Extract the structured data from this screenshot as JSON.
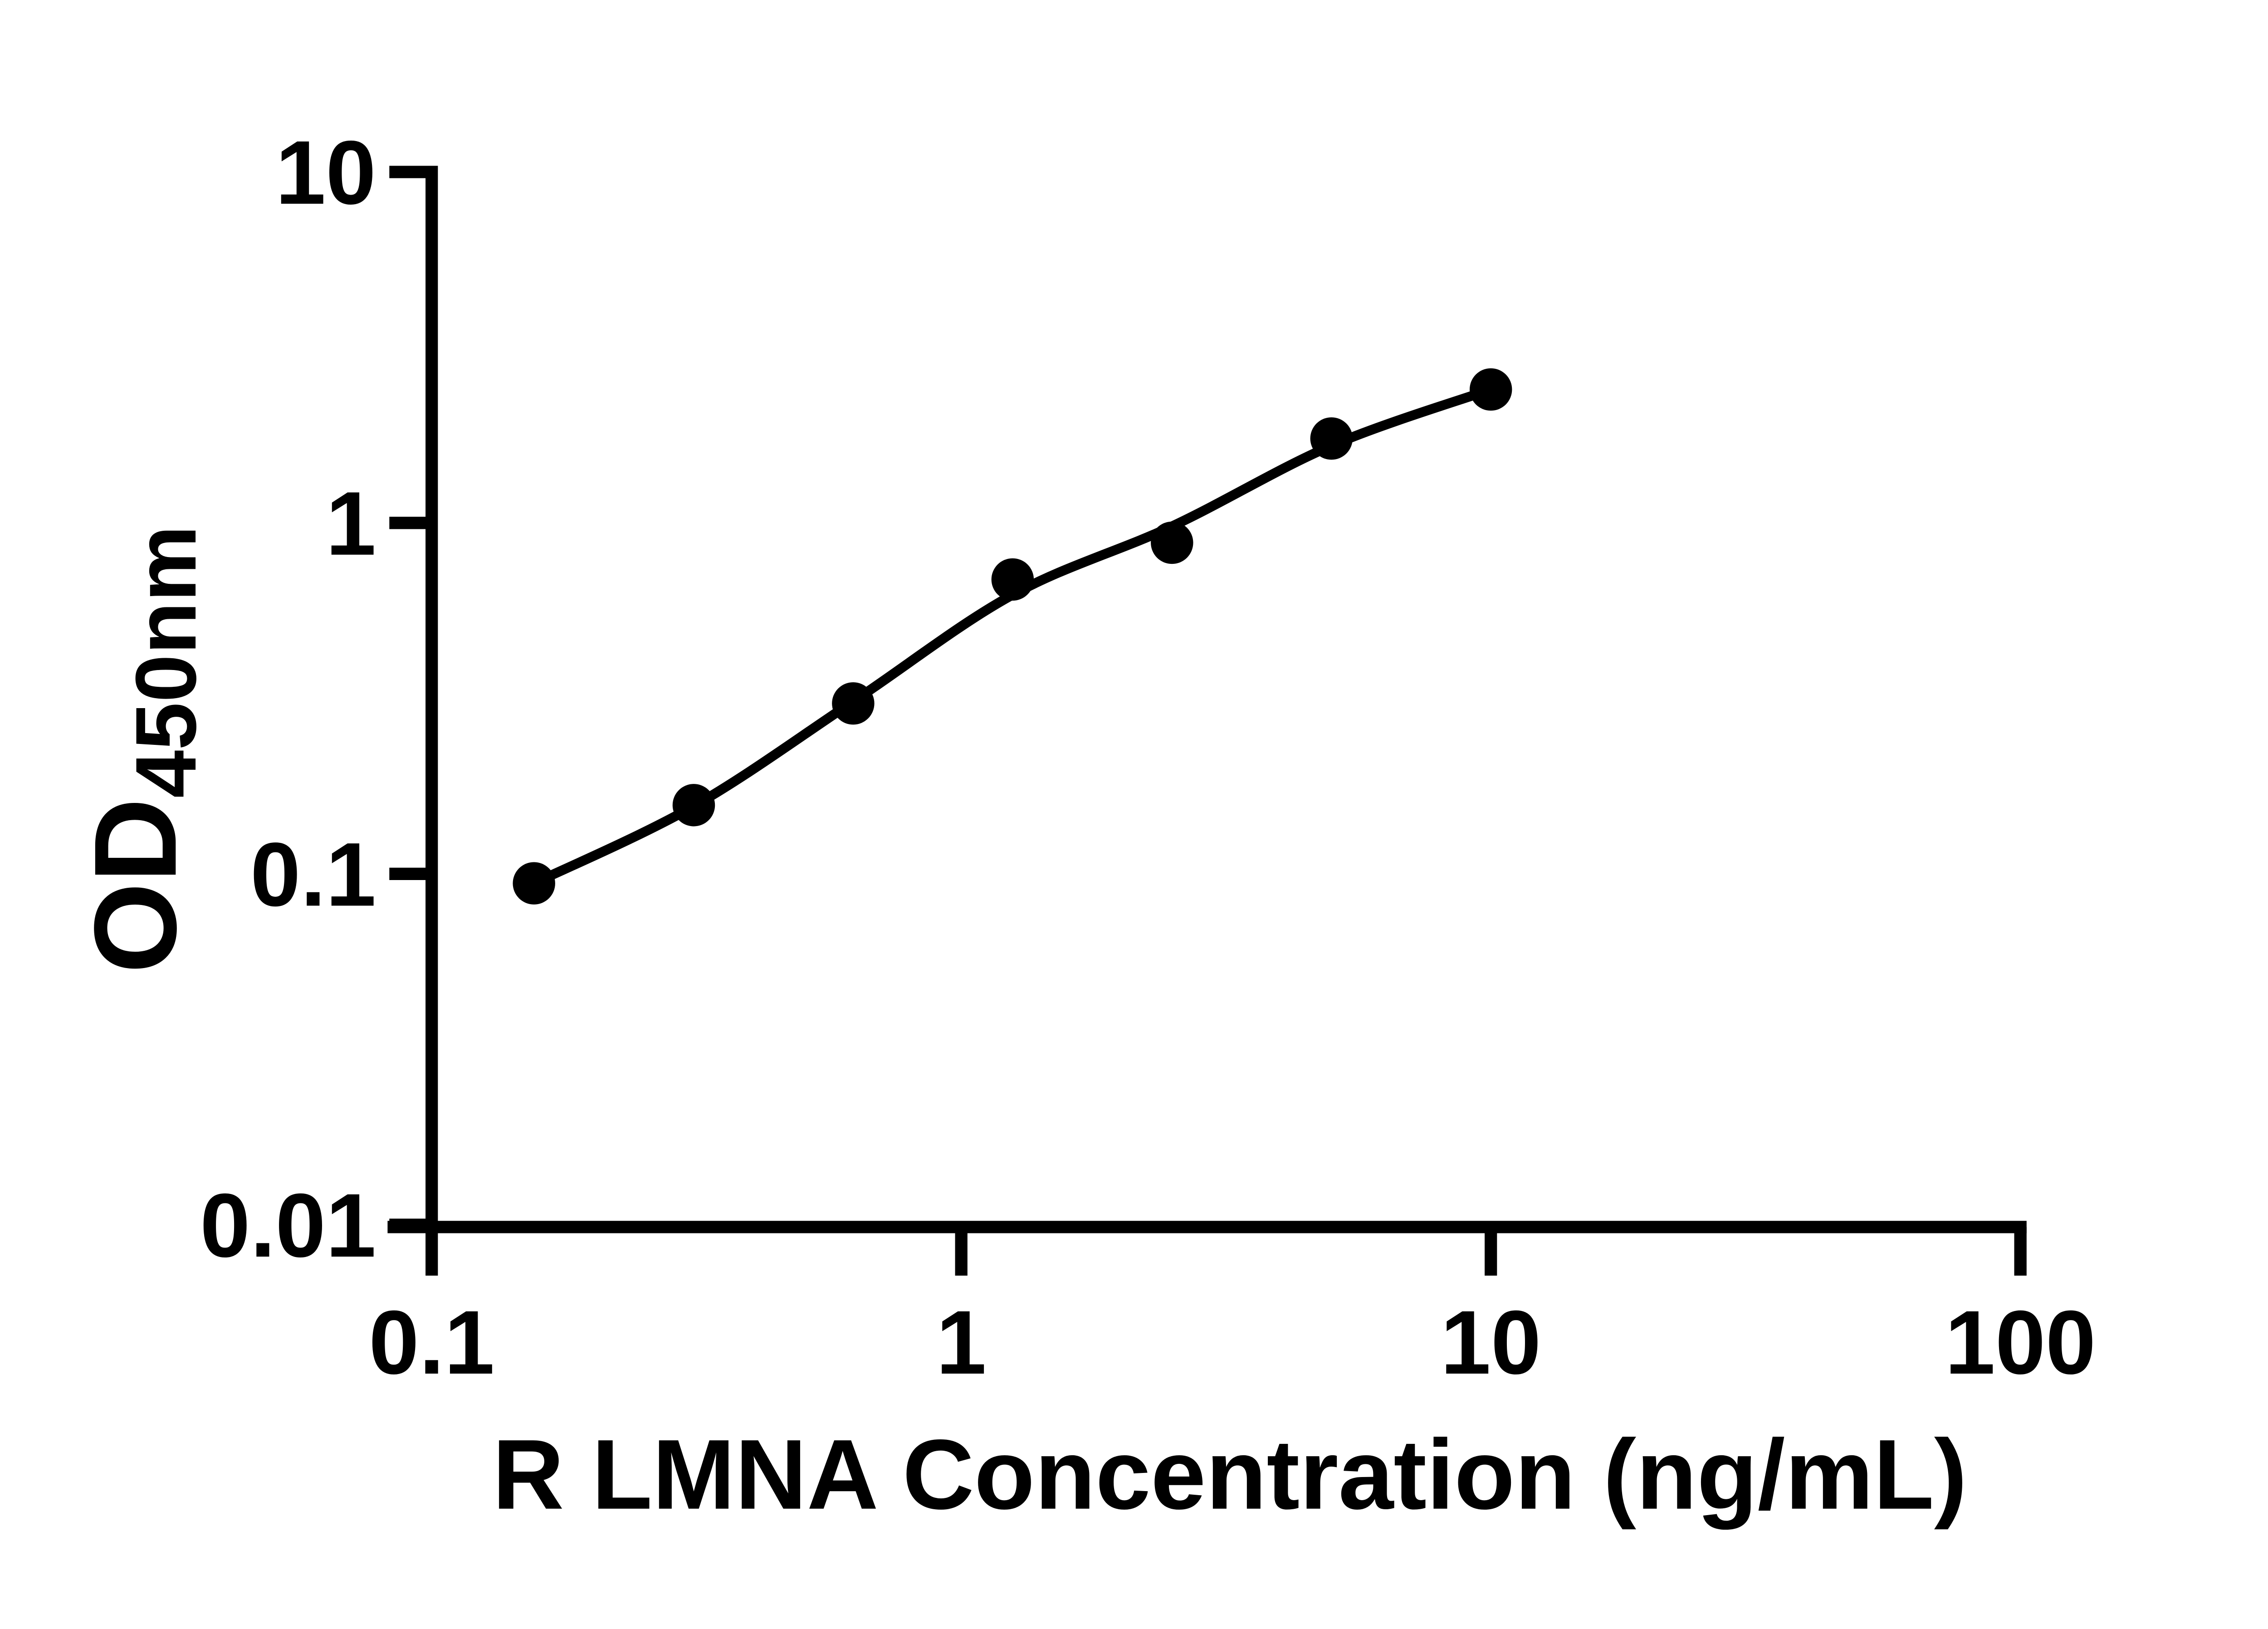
{
  "colors": {
    "ink": "#000000",
    "background": "#ffffff"
  },
  "chart_data": {
    "type": "scatter",
    "title": "",
    "xlabel": "R LMNA Concentration (ng/mL)",
    "ylabel": "OD450nm",
    "ylabel_main": "OD",
    "ylabel_sub": "450nm",
    "x_scale": "log10",
    "y_scale": "log10",
    "xlim": [
      0.1,
      100
    ],
    "ylim": [
      0.01,
      10
    ],
    "x_tick_labels": [
      "0.1",
      "1",
      "10",
      "100"
    ],
    "x_tick_values": [
      0.1,
      1,
      10,
      100
    ],
    "y_tick_labels": [
      "10",
      "1",
      "0.1",
      "0.01"
    ],
    "y_tick_values": [
      10,
      1,
      0.1,
      0.01
    ],
    "grid": false,
    "legend": "none",
    "marker": "filled-circle",
    "series": [
      {
        "name": "standard-curve-points",
        "x": [
          0.156,
          0.3125,
          0.625,
          1.25,
          2.5,
          5,
          10
        ],
        "y": [
          0.094,
          0.157,
          0.306,
          0.69,
          0.878,
          1.74,
          2.4
        ]
      }
    ],
    "fit_line": {
      "name": "four-parameter-logistic-fit",
      "x": [
        0.156,
        0.3125,
        0.625,
        1.25,
        2.5,
        5,
        10
      ],
      "y": [
        0.094,
        0.156,
        0.31,
        0.624,
        0.978,
        1.66,
        2.4
      ]
    }
  }
}
